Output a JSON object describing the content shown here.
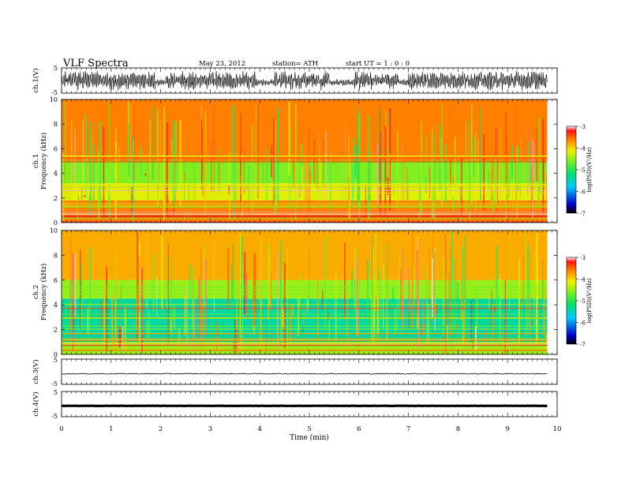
{
  "header": {
    "title": "VLF  Spectra",
    "date": "May 23, 2012",
    "station": "station= ATH",
    "start": "start  UT  =    1  : 0   : 0"
  },
  "chart_data": [
    {
      "type": "line",
      "panel": "ch1-waveform",
      "ylabel": "ch.1(V)",
      "ylim": [
        -5,
        5
      ],
      "yticks": [
        "5",
        "-5"
      ],
      "series_color": "#000000",
      "x_extent_min": [
        0,
        9.8
      ],
      "description_values": {
        "typical_amplitude_V": 4,
        "quiet_intervals_min": [
          [
            1.9,
            2.1
          ],
          [
            3.9,
            4.3
          ],
          [
            5.4,
            5.9
          ],
          [
            6.8,
            7.0
          ]
        ]
      }
    },
    {
      "type": "heatmap",
      "panel": "ch1-spectrogram",
      "ylabel_lines": [
        "ch.1",
        "Frequency  (kHz)"
      ],
      "ylim": [
        0,
        10
      ],
      "yticks": [
        "0",
        "2",
        "4",
        "6",
        "8",
        "10"
      ],
      "x_extent_min": [
        0,
        9.8
      ],
      "colorbar": {
        "label": "log(PSD)(V²/Hz)",
        "range": [
          -7,
          -3
        ],
        "ticks": [
          "-3",
          "-4",
          "-5",
          "-6",
          "-7"
        ]
      },
      "profile_bands": [
        {
          "f_khz": [
            0,
            0.6
          ],
          "logpsd": -3.3
        },
        {
          "f_khz": [
            0.6,
            1.8
          ],
          "logpsd": -3.6
        },
        {
          "f_khz": [
            1.8,
            3.2
          ],
          "logpsd": -4.2
        },
        {
          "f_khz": [
            3.2,
            5.0
          ],
          "logpsd": -4.6
        },
        {
          "f_khz": [
            5.0,
            10
          ],
          "logpsd": -3.6
        }
      ]
    },
    {
      "type": "heatmap",
      "panel": "ch2-spectrogram",
      "ylabel_lines": [
        "ch.2",
        "Frequency  (kHz)"
      ],
      "ylim": [
        0,
        10
      ],
      "yticks": [
        "0",
        "2",
        "4",
        "6",
        "8",
        "10"
      ],
      "x_extent_min": [
        0,
        9.8
      ],
      "colorbar": {
        "label": "log(PSD)(V²/Hz)",
        "range": [
          -7,
          -3
        ],
        "ticks": [
          "-3",
          "-4",
          "-5",
          "-6",
          "-7"
        ]
      },
      "profile_bands": [
        {
          "f_khz": [
            0,
            1.0
          ],
          "logpsd": -4.5
        },
        {
          "f_khz": [
            1.0,
            4.5
          ],
          "logpsd": -5.4
        },
        {
          "f_khz": [
            4.5,
            6.0
          ],
          "logpsd": -4.5
        },
        {
          "f_khz": [
            6.0,
            10
          ],
          "logpsd": -3.8
        }
      ]
    },
    {
      "type": "line",
      "panel": "ch3-waveform",
      "ylabel": "ch.3(V)",
      "ylim": [
        -5,
        5
      ],
      "yticks": [
        "5",
        "-5"
      ],
      "x_extent_min": [
        0,
        9.8
      ],
      "level_V": -0.8
    },
    {
      "type": "line",
      "panel": "ch4-waveform",
      "ylabel": "ch.4(V)",
      "ylim": [
        -5,
        5
      ],
      "yticks": [
        "5",
        "-5"
      ],
      "x_extent_min": [
        0,
        9.8
      ],
      "level_V": -0.7
    }
  ],
  "xaxis": {
    "label": "Time  (min)",
    "range": [
      0,
      10
    ],
    "ticks": [
      "0",
      "1",
      "2",
      "3",
      "4",
      "5",
      "6",
      "7",
      "8",
      "9",
      "10"
    ]
  }
}
